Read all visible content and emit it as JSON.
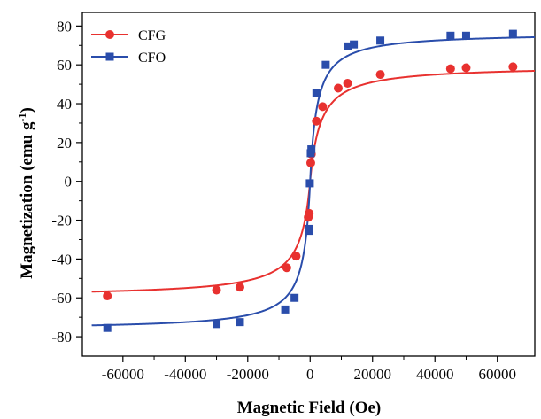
{
  "chart_data": {
    "type": "scatter",
    "xlabel": "Magnetic Field (Oe)",
    "ylabel_main": "Magnetization (emu g",
    "ylabel_sup": "-1",
    "ylabel_close": ")",
    "xlim": [
      -73000,
      72000
    ],
    "ylim": [
      -90,
      87
    ],
    "xticks": [
      -60000,
      -40000,
      -20000,
      0,
      20000,
      40000,
      60000
    ],
    "xtick_labels": [
      "-60000",
      "-40000",
      "-20000",
      "0",
      "20000",
      "40000",
      "60000"
    ],
    "yticks": [
      -80,
      -60,
      -40,
      -20,
      0,
      20,
      40,
      60,
      80
    ],
    "ytick_labels": [
      "-80",
      "-60",
      "-40",
      "-20",
      "0",
      "20",
      "40",
      "60",
      "80"
    ],
    "legend_position": "top-left",
    "series": [
      {
        "name": "CFG",
        "color": "#e8312f",
        "marker": "circle",
        "Ms": 59.5,
        "H0": 3300,
        "points": [
          [
            -65000,
            -59
          ],
          [
            -30000,
            -56
          ],
          [
            -22500,
            -54.5
          ],
          [
            -7500,
            -44.5
          ],
          [
            -4500,
            -38.5
          ],
          [
            -600,
            -18.5
          ],
          [
            -300,
            -16.5
          ],
          [
            200,
            9.5
          ],
          [
            400,
            14
          ],
          [
            2000,
            31
          ],
          [
            4000,
            38.5
          ],
          [
            9000,
            48
          ],
          [
            12000,
            50.5
          ],
          [
            22500,
            55
          ],
          [
            45000,
            58
          ],
          [
            50000,
            58.5
          ],
          [
            65000,
            59
          ]
        ]
      },
      {
        "name": "CFO",
        "color": "#2a4dab",
        "marker": "square",
        "Ms": 76.5,
        "H0": 2200,
        "points": [
          [
            -65000,
            -75.5
          ],
          [
            -30000,
            -73.5
          ],
          [
            -22500,
            -72.5
          ],
          [
            -8000,
            -66
          ],
          [
            -5000,
            -60
          ],
          [
            -500,
            -25.5
          ],
          [
            -300,
            -24.5
          ],
          [
            -100,
            -1
          ],
          [
            200,
            14.5
          ],
          [
            400,
            16.5
          ],
          [
            2000,
            45.5
          ],
          [
            5000,
            60
          ],
          [
            12000,
            69.5
          ],
          [
            14000,
            70.5
          ],
          [
            22500,
            72.5
          ],
          [
            45000,
            75
          ],
          [
            50000,
            75
          ],
          [
            65000,
            76
          ]
        ]
      }
    ]
  }
}
